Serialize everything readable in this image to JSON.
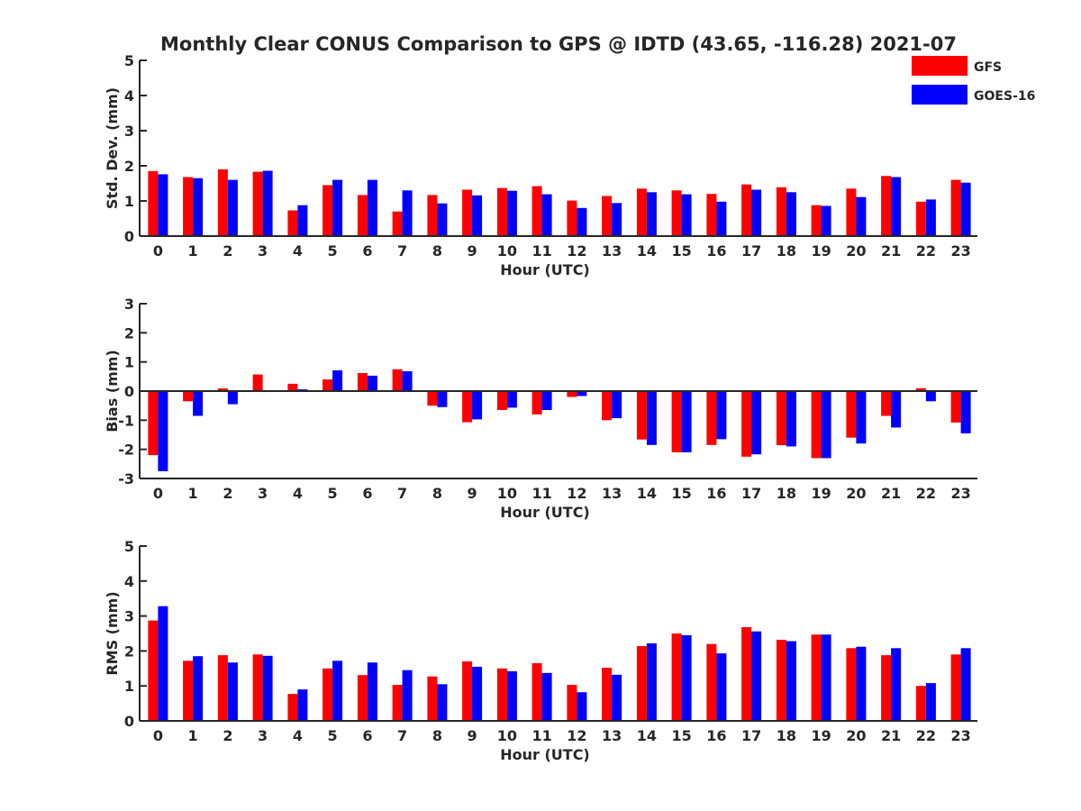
{
  "title": "Monthly Clear CONUS Comparison to GPS @ IDTD (43.65, -116.28) 2021-07",
  "legend": [
    {
      "label": "GFS",
      "color": "#ff0000"
    },
    {
      "label": "GOES-16",
      "color": "#0000ff"
    }
  ],
  "chart_data": [
    {
      "type": "bar",
      "ylabel": "Std. Dev. (mm)",
      "xlabel": "Hour (UTC)",
      "ylim": [
        0,
        5
      ],
      "yticks": [
        0,
        1,
        2,
        3,
        4,
        5
      ],
      "categories": [
        "0",
        "1",
        "2",
        "3",
        "4",
        "5",
        "6",
        "7",
        "8",
        "9",
        "10",
        "11",
        "12",
        "13",
        "14",
        "15",
        "16",
        "17",
        "18",
        "19",
        "20",
        "21",
        "22",
        "23"
      ],
      "series": [
        {
          "name": "GFS",
          "values": [
            1.85,
            1.68,
            1.9,
            1.83,
            0.73,
            1.45,
            1.17,
            0.7,
            1.17,
            1.32,
            1.37,
            1.42,
            1.01,
            1.14,
            1.35,
            1.3,
            1.2,
            1.47,
            1.39,
            0.88,
            1.35,
            1.71,
            0.98,
            1.6
          ]
        },
        {
          "name": "GOES-16",
          "values": [
            1.76,
            1.65,
            1.6,
            1.86,
            0.88,
            1.6,
            1.6,
            1.3,
            0.93,
            1.16,
            1.29,
            1.19,
            0.8,
            0.94,
            1.25,
            1.19,
            0.98,
            1.32,
            1.25,
            0.86,
            1.11,
            1.68,
            1.04,
            1.52
          ]
        }
      ]
    },
    {
      "type": "bar",
      "ylabel": "Bias (mm)",
      "xlabel": "Hour (UTC)",
      "ylim": [
        -3,
        3
      ],
      "yticks": [
        -3,
        -2,
        -1,
        0,
        1,
        2,
        3
      ],
      "categories": [
        "0",
        "1",
        "2",
        "3",
        "4",
        "5",
        "6",
        "7",
        "8",
        "9",
        "10",
        "11",
        "12",
        "13",
        "14",
        "15",
        "16",
        "17",
        "18",
        "19",
        "20",
        "21",
        "22",
        "23"
      ],
      "series": [
        {
          "name": "GFS",
          "values": [
            -2.2,
            -0.35,
            0.09,
            0.57,
            0.25,
            0.4,
            0.62,
            0.75,
            -0.5,
            -1.07,
            -0.65,
            -0.8,
            -0.2,
            -1.0,
            -1.66,
            -2.1,
            -1.85,
            -2.25,
            -1.86,
            -2.3,
            -1.6,
            -0.85,
            0.1,
            -1.08
          ]
        },
        {
          "name": "GOES-16",
          "values": [
            -2.75,
            -0.85,
            -0.45,
            0.0,
            0.06,
            0.71,
            0.53,
            0.68,
            -0.55,
            -0.97,
            -0.57,
            -0.65,
            -0.17,
            -0.93,
            -1.85,
            -2.1,
            -1.65,
            -2.17,
            -1.9,
            -2.3,
            -1.8,
            -1.25,
            -0.35,
            -1.45
          ]
        }
      ]
    },
    {
      "type": "bar",
      "ylabel": "RMS (mm)",
      "xlabel": "Hour (UTC)",
      "ylim": [
        0,
        5
      ],
      "yticks": [
        0,
        1,
        2,
        3,
        4,
        5
      ],
      "categories": [
        "0",
        "1",
        "2",
        "3",
        "4",
        "5",
        "6",
        "7",
        "8",
        "9",
        "10",
        "11",
        "12",
        "13",
        "14",
        "15",
        "16",
        "17",
        "18",
        "19",
        "20",
        "21",
        "22",
        "23"
      ],
      "series": [
        {
          "name": "GFS",
          "values": [
            2.87,
            1.72,
            1.88,
            1.9,
            0.77,
            1.5,
            1.31,
            1.03,
            1.27,
            1.7,
            1.5,
            1.65,
            1.03,
            1.52,
            2.14,
            2.5,
            2.2,
            2.68,
            2.32,
            2.47,
            2.08,
            1.88,
            1.0,
            1.9
          ]
        },
        {
          "name": "GOES-16",
          "values": [
            3.28,
            1.85,
            1.67,
            1.86,
            0.9,
            1.72,
            1.67,
            1.45,
            1.05,
            1.55,
            1.42,
            1.37,
            0.82,
            1.32,
            2.22,
            2.45,
            1.93,
            2.56,
            2.28,
            2.47,
            2.12,
            2.08,
            1.08,
            2.08
          ]
        }
      ]
    }
  ]
}
